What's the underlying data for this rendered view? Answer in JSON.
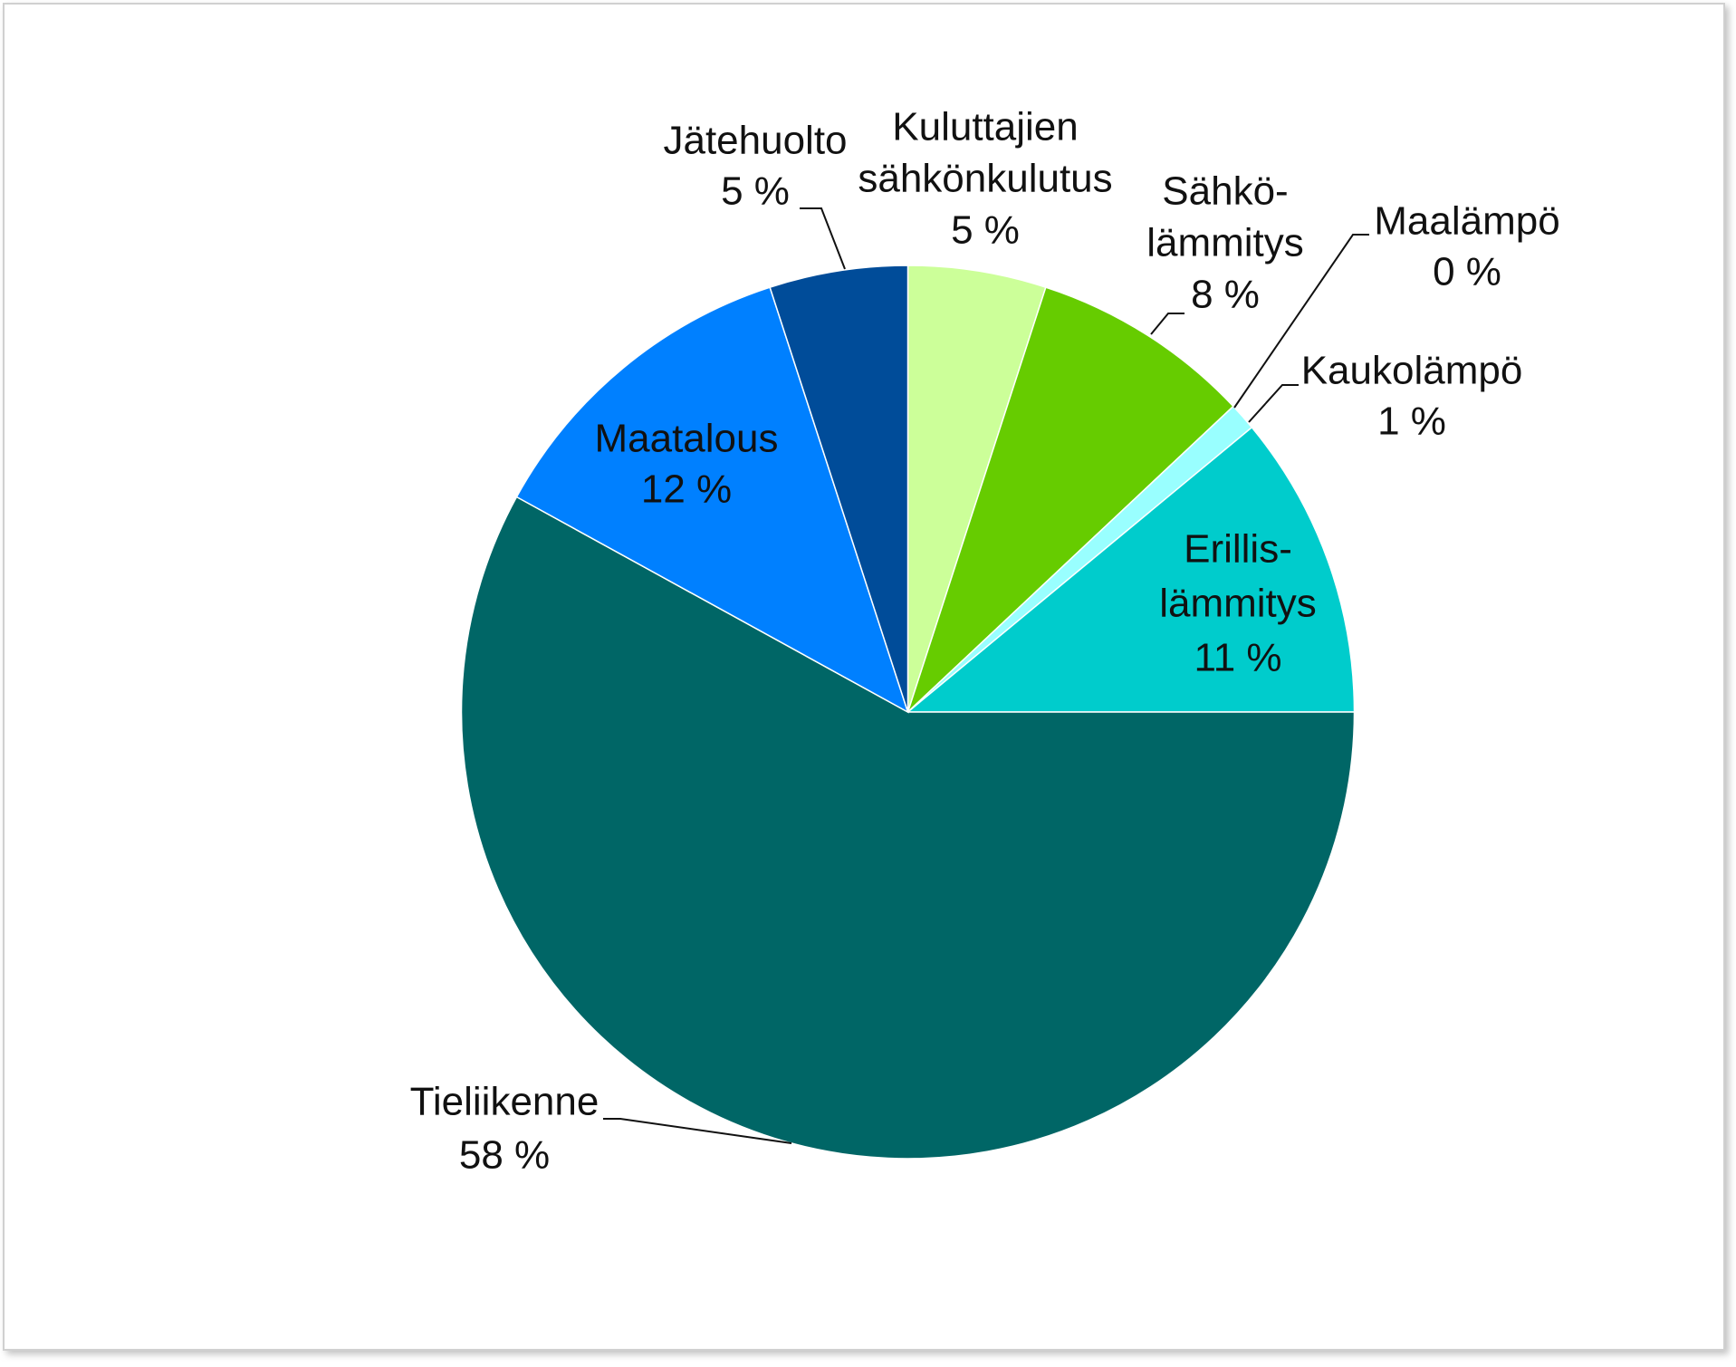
{
  "chart_data": {
    "type": "pie",
    "categories": [
      [
        "Kuluttajien",
        "sähkönkulutus"
      ],
      [
        "Sähkö-",
        "lämmitys"
      ],
      [
        "Maalämpö"
      ],
      [
        "Kaukolämpö"
      ],
      [
        "Erillis-",
        "lämmitys"
      ],
      [
        "Tieliikenne"
      ],
      [
        "Maatalous"
      ],
      [
        "Jätehuolto"
      ]
    ],
    "values": [
      5,
      8,
      0,
      1,
      11,
      58,
      12,
      5
    ],
    "value_labels": [
      "5 %",
      "8 %",
      "0 %",
      "1 %",
      "11 %",
      "58 %",
      "12 %",
      "5 %"
    ],
    "colors": [
      "#ccff99",
      "#66cc00",
      "#99ccff",
      "#99ffff",
      "#00cccc",
      "#006666",
      "#0080ff",
      "#004c99"
    ]
  }
}
